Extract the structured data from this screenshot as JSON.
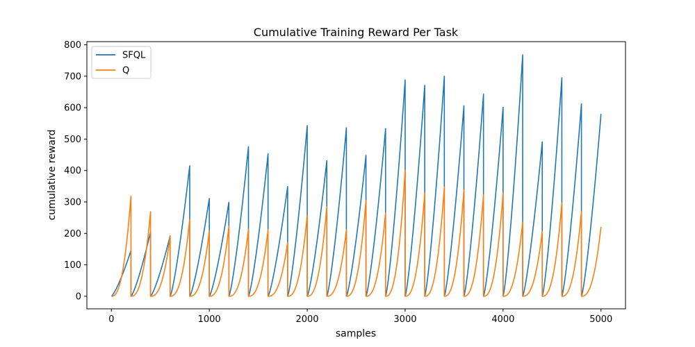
{
  "chart_data": {
    "type": "line",
    "title": "Cumulative Training Reward Per Task",
    "xlabel": "samples",
    "ylabel": "cumulative reward",
    "xlim": [
      -250,
      5250
    ],
    "ylim": [
      -40,
      810
    ],
    "xticks": [
      0,
      1000,
      2000,
      3000,
      4000,
      5000
    ],
    "yticks": [
      0,
      100,
      200,
      300,
      400,
      500,
      600,
      700,
      800
    ],
    "legend_position": "top-left",
    "task_length": 200,
    "segment_starts": [
      0,
      200,
      400,
      600,
      800,
      1000,
      1200,
      1400,
      1600,
      1800,
      2000,
      2200,
      2400,
      2600,
      2800,
      3000,
      3200,
      3400,
      3600,
      3800,
      4000,
      4200,
      4400,
      4600,
      4800
    ],
    "series": [
      {
        "name": "SFQL",
        "color": "#1f77b4",
        "shape_exponent": 1.3,
        "peaks": [
          145,
          205,
          192,
          415,
          311,
          299,
          476,
          453,
          349,
          543,
          431,
          536,
          448,
          533,
          688,
          671,
          700,
          606,
          643,
          601,
          768,
          491,
          695,
          612,
          580
        ]
      },
      {
        "name": "Q",
        "color": "#ff7f0e",
        "shape_exponent": 2.5,
        "peaks": [
          318,
          269,
          190,
          245,
          207,
          222,
          213,
          212,
          171,
          258,
          285,
          212,
          305,
          265,
          401,
          328,
          348,
          338,
          323,
          328,
          236,
          206,
          297,
          270,
          221
        ]
      }
    ]
  }
}
